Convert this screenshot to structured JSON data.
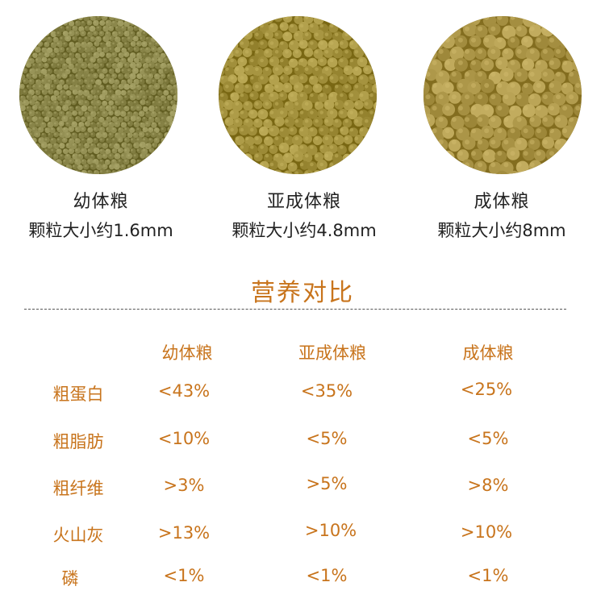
{
  "products": [
    {
      "name": "幼体粮",
      "size": "颗粒大小约1.6mm",
      "pellet_color": "#8e8a4e"
    },
    {
      "name": "亚成体粮",
      "size": "颗粒大小约4.8mm",
      "pellet_color": "#a69440"
    },
    {
      "name": "成体粮",
      "size": "颗粒大小约8mm",
      "pellet_color": "#b09a4c"
    }
  ],
  "section_title": "营养对比",
  "table": {
    "headers": [
      "幼体粮",
      "亚成体粮",
      "成体粮"
    ],
    "rows": [
      {
        "label": "粗蛋白",
        "values": [
          "<43%",
          "<35%",
          "<25%"
        ]
      },
      {
        "label": "粗脂肪",
        "values": [
          "<10%",
          "<5%",
          "<5%"
        ]
      },
      {
        "label": "粗纤维",
        "values": [
          ">3%",
          ">5%",
          ">8%"
        ]
      },
      {
        "label": "火山灰",
        "values": [
          ">13%",
          ">10%",
          ">10%"
        ]
      },
      {
        "label": "磷",
        "values": [
          "<1%",
          "<1%",
          "<1%"
        ]
      }
    ]
  },
  "colors": {
    "accent": "#c8741c",
    "text": "#222222"
  }
}
